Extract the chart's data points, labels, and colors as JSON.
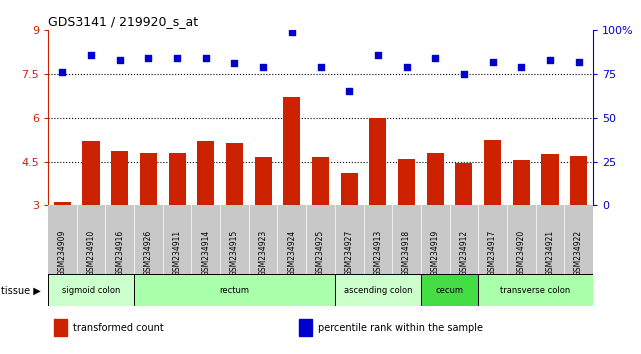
{
  "title": "GDS3141 / 219920_s_at",
  "samples": [
    "GSM234909",
    "GSM234910",
    "GSM234916",
    "GSM234926",
    "GSM234911",
    "GSM234914",
    "GSM234915",
    "GSM234923",
    "GSM234924",
    "GSM234925",
    "GSM234927",
    "GSM234913",
    "GSM234918",
    "GSM234919",
    "GSM234912",
    "GSM234917",
    "GSM234920",
    "GSM234921",
    "GSM234922"
  ],
  "bar_values": [
    3.1,
    5.2,
    4.85,
    4.8,
    4.8,
    5.2,
    5.15,
    4.65,
    6.7,
    4.65,
    4.1,
    6.0,
    4.6,
    4.8,
    4.45,
    5.25,
    4.55,
    4.75,
    4.7
  ],
  "dot_values": [
    76,
    86,
    83,
    84,
    84,
    84,
    81,
    79,
    99,
    79,
    65,
    86,
    79,
    84,
    75,
    82,
    79,
    83,
    82
  ],
  "bar_color": "#cc2200",
  "dot_color": "#0000cc",
  "ylim_left": [
    3,
    9
  ],
  "ylim_right": [
    0,
    100
  ],
  "yticks_left": [
    3,
    4.5,
    6,
    7.5,
    9
  ],
  "yticks_right": [
    0,
    25,
    50,
    75,
    100
  ],
  "ytick_labels_left": [
    "3",
    "4.5",
    "6",
    "7.5",
    "9"
  ],
  "ytick_labels_right": [
    "0",
    "25",
    "50",
    "75",
    "100%"
  ],
  "hlines": [
    4.5,
    6.0,
    7.5
  ],
  "tissue_groups": [
    {
      "label": "sigmoid colon",
      "start": 0,
      "end": 3,
      "color": "#ccffcc"
    },
    {
      "label": "rectum",
      "start": 3,
      "end": 10,
      "color": "#aaffaa"
    },
    {
      "label": "ascending colon",
      "start": 10,
      "end": 13,
      "color": "#ccffcc"
    },
    {
      "label": "cecum",
      "start": 13,
      "end": 15,
      "color": "#44dd44"
    },
    {
      "label": "transverse colon",
      "start": 15,
      "end": 19,
      "color": "#aaffaa"
    }
  ],
  "legend_labels": [
    "transformed count",
    "percentile rank within the sample"
  ],
  "legend_colors": [
    "#cc2200",
    "#0000cc"
  ],
  "xlabel_tissue": "tissue",
  "bg_color": "#c8c8c8"
}
